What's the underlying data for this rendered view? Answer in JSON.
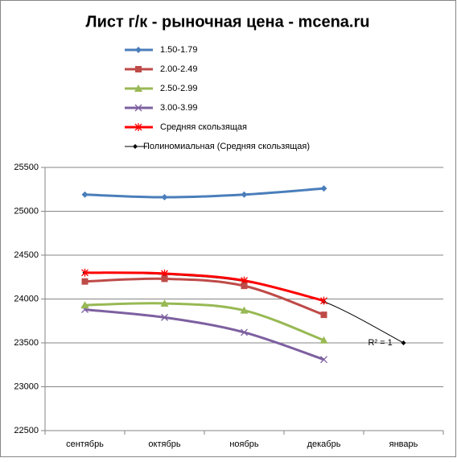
{
  "chart_data": {
    "type": "line",
    "title": "Лист г/к  - рыночная цена  - mcena.ru",
    "categories": [
      "сентябрь",
      "октябрь",
      "ноябрь",
      "декабрь",
      "январь"
    ],
    "series": [
      {
        "name": "1.50-1.79",
        "color": "#4a7ebb",
        "marker": "diamond",
        "values": [
          25190,
          25160,
          25190,
          25260,
          null
        ]
      },
      {
        "name": "2.00-2.49",
        "color": "#be4b48",
        "marker": "square",
        "values": [
          24200,
          24230,
          24150,
          23820,
          null
        ]
      },
      {
        "name": "2.50-2.99",
        "color": "#98b954",
        "marker": "triangle",
        "values": [
          23930,
          23950,
          23870,
          23530,
          null
        ]
      },
      {
        "name": "3.00-3.99",
        "color": "#7d60a0",
        "marker": "x",
        "values": [
          23880,
          23790,
          23620,
          23310,
          null
        ]
      },
      {
        "name": "Средняя скользящая",
        "color": "#ff0000",
        "marker": "star",
        "values": [
          24300,
          24290,
          24210,
          23980,
          null
        ]
      },
      {
        "name": "Полиномиальная (Средняя скользящая)",
        "color": "#000000",
        "marker": "small-diamond",
        "values": [
          24300,
          24280,
          24200,
          23970,
          23500
        ]
      }
    ],
    "annotation": "R² = 1",
    "ylim": [
      22500,
      25500
    ],
    "yticks": [
      22500,
      23000,
      23500,
      24000,
      24500,
      25000,
      25500
    ],
    "grid": true
  }
}
